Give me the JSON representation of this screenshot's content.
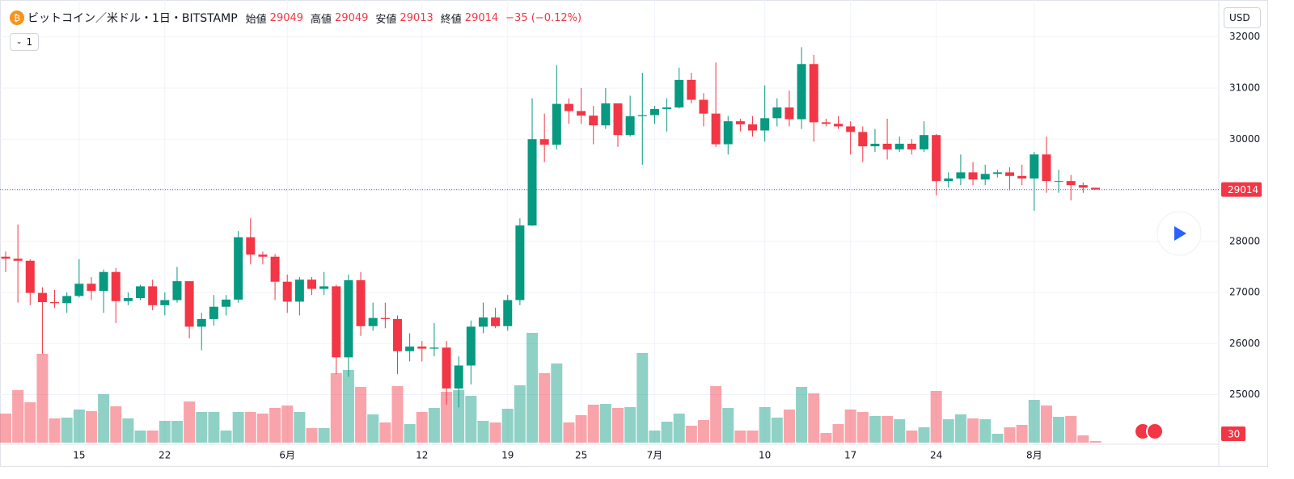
{
  "header": {
    "symbol": "ビットコイン／米ドル・1日・BITSTAMP",
    "open_label": "始値",
    "high_label": "高値",
    "low_label": "安値",
    "close_label": "終値",
    "change": "−35 (−0.12%)",
    "interval_button": "1",
    "currency": "USD"
  },
  "chart_data": {
    "type": "candlestick",
    "categories": [
      null,
      null,
      null,
      null,
      null,
      null,
      "15",
      null,
      null,
      null,
      null,
      null,
      null,
      "22",
      null,
      null,
      null,
      null,
      null,
      null,
      null,
      null,
      null,
      "6月",
      null,
      null,
      null,
      null,
      null,
      null,
      null,
      null,
      null,
      null,
      "12",
      null,
      null,
      null,
      null,
      null,
      null,
      "19",
      null,
      null,
      null,
      null,
      null,
      "25",
      null,
      null,
      null,
      null,
      null,
      "7月",
      null,
      null,
      null,
      null,
      null,
      null,
      null,
      null,
      "10",
      null,
      null,
      null,
      null,
      null,
      null,
      "17",
      null,
      null,
      null,
      null,
      null,
      null,
      "24",
      null,
      null,
      null,
      null,
      null,
      null,
      null,
      "8月",
      null,
      null,
      null,
      null,
      null
    ],
    "open": [
      27700,
      27660,
      27620,
      26990,
      26810,
      26790,
      26930,
      27170,
      27030,
      27400,
      26830,
      26890,
      27120,
      26750,
      26850,
      27220,
      26330,
      26480,
      26720,
      26860,
      28080,
      27740,
      27700,
      27210,
      26820,
      27250,
      27070,
      27120,
      25730,
      27240,
      26340,
      26500,
      26480,
      25850,
      25940,
      25900,
      25920,
      25120,
      25570,
      26330,
      26510,
      26340,
      26850,
      28310,
      30000,
      29890,
      30690,
      30550,
      30460,
      30270,
      30700,
      30080,
      30450,
      30470,
      30590,
      30620,
      31160,
      30770,
      30500,
      29900,
      30350,
      30290,
      30170,
      30410,
      30620,
      30390,
      31470,
      30330,
      30300,
      30250,
      30140,
      29860,
      29910,
      29800,
      29910,
      29800,
      30080,
      29180,
      29230,
      29350,
      29210,
      29320,
      29350,
      29280,
      29230,
      29700,
      29170,
      29180,
      29100,
      29049
    ],
    "high": [
      27800,
      28330,
      27650,
      27100,
      27050,
      27000,
      27650,
      27300,
      27450,
      27480,
      27000,
      27150,
      27250,
      27000,
      27500,
      27220,
      26600,
      26950,
      26950,
      28200,
      28450,
      27800,
      27750,
      27350,
      27300,
      27300,
      27400,
      27150,
      27350,
      27400,
      26800,
      26800,
      26550,
      26200,
      26050,
      26400,
      26050,
      25750,
      26450,
      26800,
      26700,
      26950,
      28450,
      30800,
      30500,
      31450,
      30800,
      31000,
      30650,
      31000,
      30700,
      30850,
      31300,
      30650,
      30800,
      31400,
      31300,
      30900,
      31500,
      30450,
      30400,
      30450,
      31050,
      30800,
      30950,
      31800,
      31650,
      30400,
      30450,
      30350,
      30250,
      30200,
      30400,
      30050,
      30000,
      30350,
      30100,
      29350,
      29700,
      29550,
      29500,
      29400,
      29450,
      29500,
      29750,
      30050,
      29400,
      29300,
      29150,
      29049
    ],
    "low": [
      27400,
      26800,
      26750,
      25800,
      26700,
      26600,
      26900,
      26850,
      26600,
      26400,
      26750,
      26850,
      26650,
      26550,
      26800,
      26100,
      25870,
      26350,
      26550,
      26800,
      27550,
      27550,
      26850,
      26600,
      26550,
      26950,
      26950,
      25400,
      25350,
      26150,
      26250,
      26300,
      25400,
      25650,
      25650,
      25750,
      24800,
      24750,
      25200,
      26200,
      26300,
      26250,
      26750,
      28300,
      29550,
      29800,
      30300,
      30300,
      29900,
      30200,
      29850,
      30050,
      29500,
      30300,
      30150,
      30600,
      30700,
      30250,
      29850,
      29700,
      30150,
      30050,
      29950,
      30250,
      30250,
      30200,
      29950,
      30250,
      30200,
      29700,
      29550,
      29750,
      29600,
      29750,
      29700,
      29750,
      28900,
      29050,
      29100,
      29100,
      29100,
      29250,
      29000,
      29100,
      28600,
      28950,
      28950,
      28800,
      28950,
      29013
    ],
    "close": [
      27660,
      27620,
      26990,
      26810,
      26790,
      26930,
      27170,
      27030,
      27400,
      26830,
      26890,
      27120,
      26750,
      26850,
      27220,
      26330,
      26480,
      26720,
      26860,
      28080,
      27740,
      27700,
      27210,
      26820,
      27250,
      27070,
      27120,
      25730,
      27240,
      26340,
      26500,
      26480,
      25850,
      25940,
      25900,
      25920,
      25120,
      25570,
      26330,
      26510,
      26340,
      26850,
      28310,
      30000,
      29890,
      30690,
      30550,
      30460,
      30270,
      30700,
      30080,
      30450,
      30470,
      30590,
      30620,
      31160,
      30770,
      30500,
      29900,
      30350,
      30290,
      30170,
      30410,
      30620,
      30390,
      31470,
      30330,
      30300,
      30250,
      30140,
      29860,
      29910,
      29800,
      29910,
      29800,
      30080,
      29180,
      29230,
      29350,
      29210,
      29320,
      29350,
      29280,
      29230,
      29700,
      29180,
      29180,
      29100,
      29050,
      29014
    ],
    "volume": [
      540,
      975,
      750,
      1650,
      450,
      465,
      615,
      585,
      900,
      675,
      450,
      225,
      225,
      405,
      405,
      765,
      570,
      570,
      225,
      570,
      570,
      540,
      645,
      690,
      570,
      270,
      270,
      1290,
      1350,
      1035,
      525,
      375,
      1050,
      345,
      570,
      645,
      945,
      975,
      870,
      405,
      375,
      630,
      1065,
      2040,
      1290,
      1470,
      375,
      510,
      705,
      720,
      645,
      660,
      1665,
      225,
      390,
      540,
      315,
      420,
      1050,
      645,
      225,
      225,
      660,
      465,
      615,
      1035,
      915,
      180,
      345,
      615,
      570,
      495,
      495,
      435,
      225,
      285,
      960,
      435,
      525,
      450,
      435,
      165,
      285,
      330,
      795,
      690,
      480,
      495,
      135,
      30
    ],
    "ylim": [
      24060,
      32660
    ],
    "yticks": [
      25000,
      26000,
      27000,
      28000,
      29000,
      30000,
      31000,
      32000
    ],
    "volume_lim": [
      0,
      8160
    ],
    "up_color": "#089981",
    "down_color": "#f23645",
    "grid": true
  }
}
